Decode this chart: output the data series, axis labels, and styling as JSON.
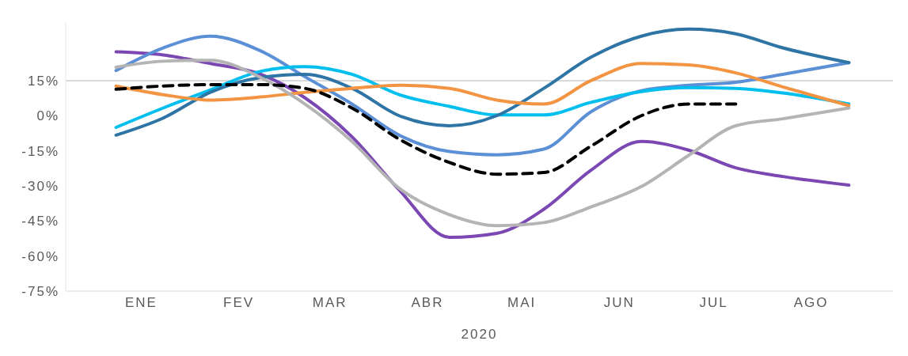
{
  "chart_data": {
    "type": "line",
    "xlabel": "2020",
    "x": [
      "2020-01-07",
      "2020-01-22",
      "2020-02-06",
      "2020-02-22",
      "2020-03-07",
      "2020-03-22",
      "2020-04-06",
      "2020-04-22",
      "2020-05-07",
      "2020-05-22",
      "2020-06-06",
      "2020-06-22",
      "2020-07-07",
      "2020-07-22",
      "2020-08-06",
      "2020-08-27"
    ],
    "xlim": [
      "2019-12-22",
      "2020-09-10"
    ],
    "xticks": [
      {
        "value": "2020-01-15",
        "label": "ENE"
      },
      {
        "value": "2020-02-15",
        "label": "FEV"
      },
      {
        "value": "2020-03-15",
        "label": "MAR"
      },
      {
        "value": "2020-04-15",
        "label": "ABR"
      },
      {
        "value": "2020-05-15",
        "label": "MAI"
      },
      {
        "value": "2020-06-15",
        "label": "JUN"
      },
      {
        "value": "2020-07-15",
        "label": "JUL"
      },
      {
        "value": "2020-08-15",
        "label": "AGO"
      }
    ],
    "yticks": [
      {
        "value": 15,
        "label": "15%"
      },
      {
        "value": 0,
        "label": "0%"
      },
      {
        "value": -15,
        "label": "-15%"
      },
      {
        "value": -30,
        "label": "-30%"
      },
      {
        "value": -45,
        "label": "-45%"
      },
      {
        "value": -60,
        "label": "-60%"
      },
      {
        "value": -75,
        "label": "-75%"
      }
    ],
    "ylim": [
      -75,
      40
    ],
    "ref_lines": [
      {
        "axis": "y",
        "value": 15,
        "color": "#d9d9d9"
      }
    ],
    "grid": false,
    "legend": false,
    "marker": "none",
    "series": [
      {
        "color": "#7b48b3",
        "values": [
          27.3,
          26,
          22.3,
          17.7,
          7.7,
          -9,
          -31.7,
          -52,
          -50.3,
          -40,
          -23.3,
          -11,
          -14.7,
          -22.3,
          -26,
          -29.7
        ]
      },
      {
        "color": "#5b8fd6",
        "values": [
          19.3,
          29,
          34,
          27.7,
          16.7,
          5,
          -8.3,
          -15.3,
          -16.7,
          -14.3,
          1.7,
          10.7,
          13,
          14.3,
          17.7,
          22.7
        ]
      },
      {
        "color": "#00bfef",
        "values": [
          -5,
          3.3,
          11,
          19,
          21,
          17.7,
          9,
          4,
          0.3,
          0.3,
          5.7,
          10.3,
          12,
          11.7,
          9.7,
          5
        ]
      },
      {
        "color": "#2e75a6",
        "values": [
          -8.3,
          -1,
          10,
          16.3,
          17.7,
          11.7,
          0,
          -4.3,
          0,
          11.7,
          25,
          34,
          37,
          35,
          29,
          22.7
        ]
      },
      {
        "color": "#f39442",
        "values": [
          12.7,
          9,
          6.7,
          8,
          10,
          11.7,
          13,
          11.7,
          6.7,
          5,
          15,
          22.3,
          21.7,
          18.3,
          12.3,
          4.3
        ]
      },
      {
        "color": "#b4b4b4",
        "values": [
          20.7,
          23.3,
          23.7,
          16.3,
          5,
          -11,
          -31,
          -42.3,
          -47,
          -45.7,
          -39,
          -30.3,
          -17,
          -4.3,
          -1.3,
          3.3
        ]
      },
      {
        "color": "#000000",
        "line_style": "dashed",
        "values": [
          11.3,
          12.7,
          13.3,
          13.3,
          11.7,
          3.3,
          -10,
          -20,
          -25,
          -24.3,
          -13,
          0,
          5,
          5,
          null,
          null
        ]
      }
    ]
  }
}
